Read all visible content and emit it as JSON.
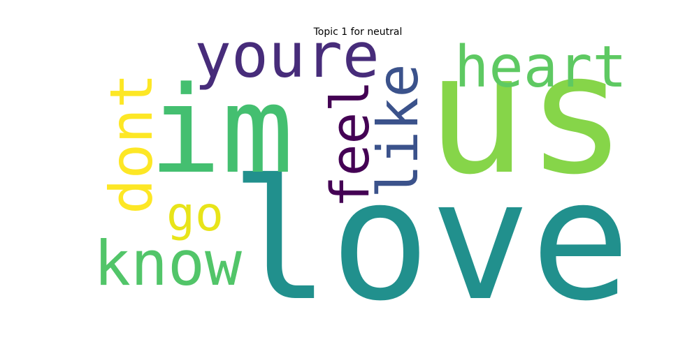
{
  "title": "Topic 1 for neutral",
  "words": [
    {
      "text": "love",
      "color": "#21908d"
    },
    {
      "text": "us",
      "color": "#86d549"
    },
    {
      "text": "im",
      "color": "#44bf70"
    },
    {
      "text": "youre",
      "color": "#472c7a"
    },
    {
      "text": "heart",
      "color": "#5ec962"
    },
    {
      "text": "like",
      "color": "#3b528b"
    },
    {
      "text": "feel",
      "color": "#440154"
    },
    {
      "text": "dont",
      "color": "#fde725"
    },
    {
      "text": "know",
      "color": "#52c569"
    },
    {
      "text": "go",
      "color": "#e8e419"
    }
  ]
}
